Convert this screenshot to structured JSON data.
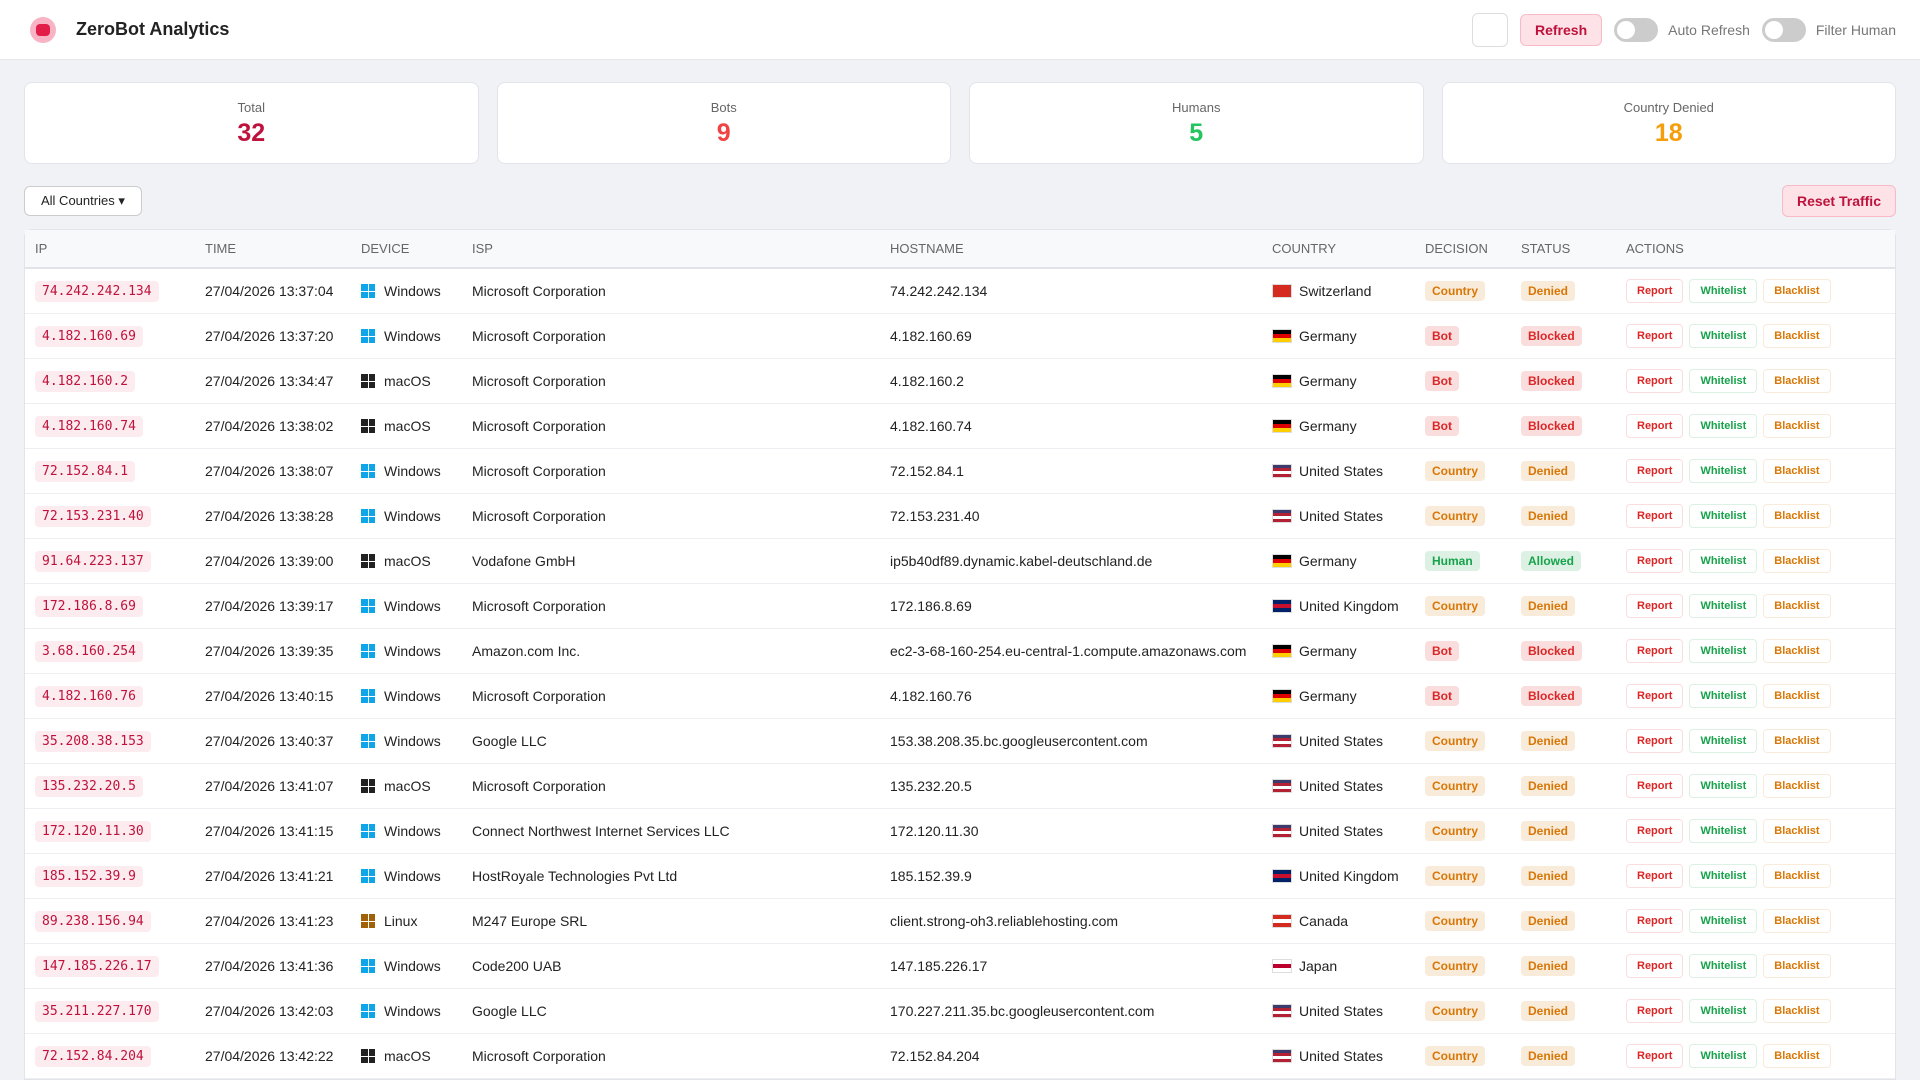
{
  "header": {
    "title": "ZeroBot Analytics",
    "refresh": "Refresh",
    "toggles": [
      "Auto Refresh",
      "Filter Human"
    ]
  },
  "stats": [
    {
      "label": "Total",
      "value": "32",
      "color": "#be123c"
    },
    {
      "label": "Bots",
      "value": "9",
      "color": "#ef4444"
    },
    {
      "label": "Humans",
      "value": "5",
      "color": "#22c55e"
    },
    {
      "label": "Country Denied",
      "value": "18",
      "color": "#f59e0b"
    }
  ],
  "filter": {
    "select": "All Countries",
    "reset": "Reset Traffic"
  },
  "table": {
    "columns": [
      "IP",
      "TIME",
      "DEVICE",
      "ISP",
      "HOSTNAME",
      "COUNTRY",
      "DECISION",
      "STATUS",
      "ACTIONS"
    ],
    "actions": [
      {
        "label": "Report",
        "color": "#dc2626"
      },
      {
        "label": "Whitelist",
        "color": "#16a34a"
      },
      {
        "label": "Blacklist",
        "color": "#d97706"
      }
    ],
    "rows": [
      {
        "ip": "74.242.242.134",
        "time": "27/04/2026 13:37:04",
        "device": "Windows",
        "isp": "Microsoft Corporation",
        "hostname": "74.242.242.134",
        "country": "Switzerland",
        "decision": "Country",
        "status": "Denied",
        "icon": "#0ea5e9",
        "flag": [
          "#d52b1e"
        ],
        "decision_color": "#d97706",
        "status_color": "#d97706"
      },
      {
        "ip": "4.182.160.69",
        "time": "27/04/2026 13:37:20",
        "device": "Windows",
        "isp": "Microsoft Corporation",
        "hostname": "4.182.160.69",
        "country": "Germany",
        "decision": "Bot",
        "status": "Blocked",
        "icon": "#0ea5e9",
        "flag": [
          "#000000",
          "#dd0000",
          "#ffce00"
        ],
        "decision_color": "#dc2626",
        "status_color": "#dc2626"
      },
      {
        "ip": "4.182.160.2",
        "time": "27/04/2026 13:34:47",
        "device": "macOS",
        "isp": "Microsoft Corporation",
        "hostname": "4.182.160.2",
        "country": "Germany",
        "decision": "Bot",
        "status": "Blocked",
        "icon": "#222222",
        "flag": [
          "#000000",
          "#dd0000",
          "#ffce00"
        ],
        "decision_color": "#dc2626",
        "status_color": "#dc2626"
      },
      {
        "ip": "4.182.160.74",
        "time": "27/04/2026 13:38:02",
        "device": "macOS",
        "isp": "Microsoft Corporation",
        "hostname": "4.182.160.74",
        "country": "Germany",
        "decision": "Bot",
        "status": "Blocked",
        "icon": "#222222",
        "flag": [
          "#000000",
          "#dd0000",
          "#ffce00"
        ],
        "decision_color": "#dc2626",
        "status_color": "#dc2626"
      },
      {
        "ip": "72.152.84.1",
        "time": "27/04/2026 13:38:07",
        "device": "Windows",
        "isp": "Microsoft Corporation",
        "hostname": "72.152.84.1",
        "country": "United States",
        "decision": "Country",
        "status": "Denied",
        "icon": "#0ea5e9",
        "flag": [
          "#3c3b6e",
          "#b22234",
          "#ffffff",
          "#b22234"
        ],
        "decision_color": "#d97706",
        "status_color": "#d97706"
      },
      {
        "ip": "72.153.231.40",
        "time": "27/04/2026 13:38:28",
        "device": "Windows",
        "isp": "Microsoft Corporation",
        "hostname": "72.153.231.40",
        "country": "United States",
        "decision": "Country",
        "status": "Denied",
        "icon": "#0ea5e9",
        "flag": [
          "#3c3b6e",
          "#b22234",
          "#ffffff",
          "#b22234"
        ],
        "decision_color": "#d97706",
        "status_color": "#d97706"
      },
      {
        "ip": "91.64.223.137",
        "time": "27/04/2026 13:39:00",
        "device": "macOS",
        "isp": "Vodafone GmbH",
        "hostname": "ip5b40df89.dynamic.kabel-deutschland.de",
        "country": "Germany",
        "decision": "Human",
        "status": "Allowed",
        "icon": "#222222",
        "flag": [
          "#000000",
          "#dd0000",
          "#ffce00"
        ],
        "decision_color": "#16a34a",
        "status_color": "#16a34a"
      },
      {
        "ip": "172.186.8.69",
        "time": "27/04/2026 13:39:17",
        "device": "Windows",
        "isp": "Microsoft Corporation",
        "hostname": "172.186.8.69",
        "country": "United Kingdom",
        "decision": "Country",
        "status": "Denied",
        "icon": "#0ea5e9",
        "flag": [
          "#012169",
          "#c8102e",
          "#012169"
        ],
        "decision_color": "#d97706",
        "status_color": "#d97706"
      },
      {
        "ip": "3.68.160.254",
        "time": "27/04/2026 13:39:35",
        "device": "Windows",
        "isp": "Amazon.com Inc.",
        "hostname": "ec2-3-68-160-254.eu-central-1.compute.amazonaws.com",
        "country": "Germany",
        "decision": "Bot",
        "status": "Blocked",
        "icon": "#0ea5e9",
        "flag": [
          "#000000",
          "#dd0000",
          "#ffce00"
        ],
        "decision_color": "#dc2626",
        "status_color": "#dc2626"
      },
      {
        "ip": "4.182.160.76",
        "time": "27/04/2026 13:40:15",
        "device": "Windows",
        "isp": "Microsoft Corporation",
        "hostname": "4.182.160.76",
        "country": "Germany",
        "decision": "Bot",
        "status": "Blocked",
        "icon": "#0ea5e9",
        "flag": [
          "#000000",
          "#dd0000",
          "#ffce00"
        ],
        "decision_color": "#dc2626",
        "status_color": "#dc2626"
      },
      {
        "ip": "35.208.38.153",
        "time": "27/04/2026 13:40:37",
        "device": "Windows",
        "isp": "Google LLC",
        "hostname": "153.38.208.35.bc.googleusercontent.com",
        "country": "United States",
        "decision": "Country",
        "status": "Denied",
        "icon": "#0ea5e9",
        "flag": [
          "#3c3b6e",
          "#b22234",
          "#ffffff",
          "#b22234"
        ],
        "decision_color": "#d97706",
        "status_color": "#d97706"
      },
      {
        "ip": "135.232.20.5",
        "time": "27/04/2026 13:41:07",
        "device": "macOS",
        "isp": "Microsoft Corporation",
        "hostname": "135.232.20.5",
        "country": "United States",
        "decision": "Country",
        "status": "Denied",
        "icon": "#222222",
        "flag": [
          "#3c3b6e",
          "#b22234",
          "#ffffff",
          "#b22234"
        ],
        "decision_color": "#d97706",
        "status_color": "#d97706"
      },
      {
        "ip": "172.120.11.30",
        "time": "27/04/2026 13:41:15",
        "device": "Windows",
        "isp": "Connect Northwest Internet Services LLC",
        "hostname": "172.120.11.30",
        "country": "United States",
        "decision": "Country",
        "status": "Denied",
        "icon": "#0ea5e9",
        "flag": [
          "#3c3b6e",
          "#b22234",
          "#ffffff",
          "#b22234"
        ],
        "decision_color": "#d97706",
        "status_color": "#d97706"
      },
      {
        "ip": "185.152.39.9",
        "time": "27/04/2026 13:41:21",
        "device": "Windows",
        "isp": "HostRoyale Technologies Pvt Ltd",
        "hostname": "185.152.39.9",
        "country": "United Kingdom",
        "decision": "Country",
        "status": "Denied",
        "icon": "#0ea5e9",
        "flag": [
          "#012169",
          "#c8102e",
          "#012169"
        ],
        "decision_color": "#d97706",
        "status_color": "#d97706"
      },
      {
        "ip": "89.238.156.94",
        "time": "27/04/2026 13:41:23",
        "device": "Linux",
        "isp": "M247 Europe SRL",
        "hostname": "client.strong-oh3.reliablehosting.com",
        "country": "Canada",
        "decision": "Country",
        "status": "Denied",
        "icon": "#a16207",
        "flag": [
          "#d52b1e",
          "#ffffff",
          "#d52b1e"
        ],
        "decision_color": "#d97706",
        "status_color": "#d97706"
      },
      {
        "ip": "147.185.226.17",
        "time": "27/04/2026 13:41:36",
        "device": "Windows",
        "isp": "Code200 UAB",
        "hostname": "147.185.226.17",
        "country": "Japan",
        "decision": "Country",
        "status": "Denied",
        "icon": "#0ea5e9",
        "flag": [
          "#ffffff",
          "#bc002d",
          "#ffffff"
        ],
        "decision_color": "#d97706",
        "status_color": "#d97706"
      },
      {
        "ip": "35.211.227.170",
        "time": "27/04/2026 13:42:03",
        "device": "Windows",
        "isp": "Google LLC",
        "hostname": "170.227.211.35.bc.googleusercontent.com",
        "country": "United States",
        "decision": "Country",
        "status": "Denied",
        "icon": "#0ea5e9",
        "flag": [
          "#3c3b6e",
          "#b22234",
          "#ffffff",
          "#b22234"
        ],
        "decision_color": "#d97706",
        "status_color": "#d97706"
      },
      {
        "ip": "72.152.84.204",
        "time": "27/04/2026 13:42:22",
        "device": "macOS",
        "isp": "Microsoft Corporation",
        "hostname": "72.152.84.204",
        "country": "United States",
        "decision": "Country",
        "status": "Denied",
        "icon": "#222222",
        "flag": [
          "#3c3b6e",
          "#b22234",
          "#ffffff",
          "#b22234"
        ],
        "decision_color": "#d97706",
        "status_color": "#d97706"
      }
    ]
  }
}
